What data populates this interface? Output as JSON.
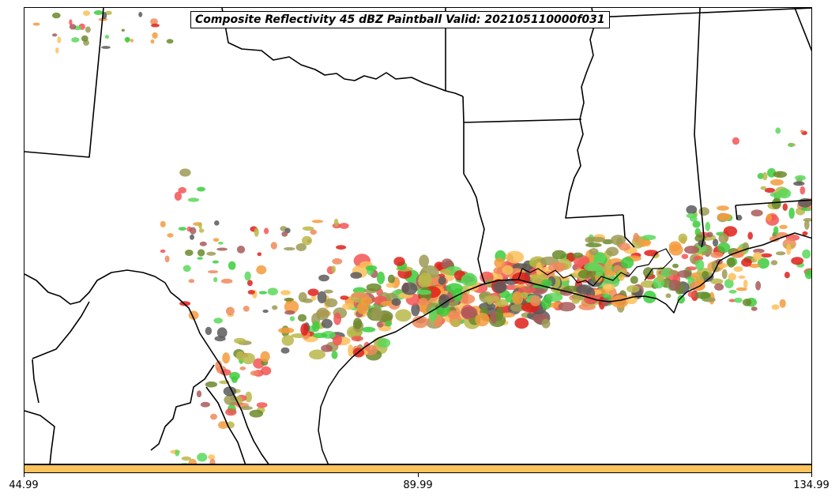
{
  "title": "Composite Reflectivity 45 dBZ Paintball Valid: 202105110000f031",
  "colors": {
    "members": [
      "#f25555",
      "#f59b3c",
      "#fbbf5a",
      "#3ccc3c",
      "#5ad85a",
      "#6a8a2a",
      "#9c9a55",
      "#a85a5a",
      "#5b5b5b",
      "#e0201a",
      "#b8b84a",
      "#f08a5a"
    ],
    "colorbar": "#fcc35c",
    "boundary": "#000000"
  },
  "colorbar": {
    "ticks": [
      "44.99",
      "89.99",
      "134.99"
    ],
    "values": [
      44.99,
      89.99,
      134.99
    ]
  }
}
